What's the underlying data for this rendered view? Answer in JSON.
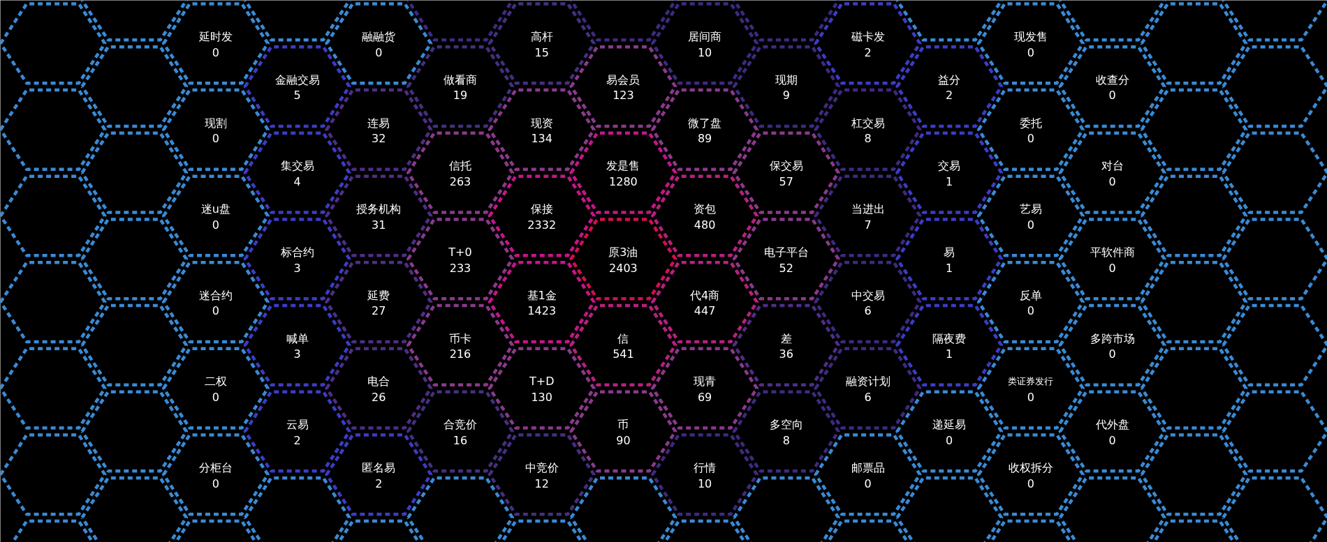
{
  "chart_data": {
    "type": "other",
    "data_labels": true,
    "categories": [
      null,
      null,
      null,
      null,
      null,
      null,
      null,
      null,
      null,
      null,
      null,
      null,
      null,
      null,
      "延时发",
      "现割",
      "迷u盘",
      "迷合约",
      "二权",
      "分柜台",
      null,
      null,
      "金融交易",
      "集交易",
      "标合约",
      "喊单",
      "云易",
      null,
      "融融货",
      "连易",
      "授务机构",
      "延费",
      "电合",
      "匿名易",
      null,
      null,
      "做看商",
      "信托",
      "T+0",
      "币卡",
      "合竞价",
      null,
      "高杆",
      "现资",
      "保接",
      "基1金",
      "T+D",
      "中竞价",
      null,
      null,
      "易会员",
      "发是售",
      "原3油",
      "信",
      "币",
      null,
      "居间商",
      "微了盘",
      "资包",
      "代4商",
      "现青",
      "行情",
      null,
      null,
      "现期",
      "保交易",
      "电子平台",
      "差",
      "多空向",
      null,
      "磁卡发",
      "杠交易",
      "当进出",
      "中交易",
      "融资计划",
      "邮票品",
      null,
      null,
      "益分",
      "交易",
      "易",
      "隔夜费",
      "递延易",
      null,
      "现发售",
      "委托",
      "艺易",
      "反单",
      "类证券发行",
      "收权拆分",
      null,
      null,
      "收查分",
      "对台",
      "平软件商",
      "多跨市场",
      "代外盘",
      null,
      null,
      null,
      null,
      null,
      null,
      null,
      null,
      null,
      null,
      null,
      null,
      null,
      null,
      null
    ],
    "values": [
      null,
      null,
      null,
      null,
      null,
      null,
      null,
      null,
      null,
      null,
      null,
      null,
      null,
      null,
      0,
      0,
      0,
      0,
      0,
      0,
      null,
      null,
      5,
      4,
      3,
      3,
      2,
      null,
      0,
      32,
      31,
      27,
      26,
      2,
      null,
      null,
      19,
      263,
      233,
      216,
      16,
      null,
      15,
      134,
      2332,
      1423,
      130,
      12,
      null,
      null,
      123,
      1280,
      2403,
      541,
      90,
      null,
      10,
      89,
      480,
      447,
      69,
      10,
      null,
      null,
      9,
      57,
      52,
      36,
      8,
      null,
      2,
      8,
      7,
      6,
      6,
      0,
      null,
      null,
      2,
      1,
      1,
      1,
      0,
      null,
      0,
      0,
      0,
      0,
      0,
      0,
      null,
      null,
      0,
      0,
      0,
      0,
      0,
      null,
      null,
      null,
      null,
      null,
      null,
      null,
      null,
      null,
      null,
      null,
      null,
      null,
      null,
      null
    ],
    "colors": [
      "#3a8ad4",
      "#3a8ad4",
      "#3a8ad4",
      "#3a8ad4",
      "#3a8ad4",
      "#3a8ad4",
      "#3a8ad4",
      "#3a8ad4",
      "#3a8ad4",
      "#3a8ad4",
      "#3a8ad4",
      "#3a8ad4",
      "#3a8ad4",
      "#3a8ad4",
      "#3a8ad4",
      "#3a8ad4",
      "#3a8ad4",
      "#3a8ad4",
      "#3a8ad4",
      "#3a8ad4",
      "#3a8ad4",
      "#3a8ad4",
      "#3c3cc6",
      "#3c3cc6",
      "#3c3cc6",
      "#3c3cc6",
      "#3c3cc6",
      "#3a8ad4",
      "#3a8ad4",
      "#4e2e86",
      "#4e2e86",
      "#4e2e86",
      "#4e2e86",
      "#3c3cc6",
      "#3a8ad4",
      "#3e2a80",
      "#44307e",
      "#8a3a8a",
      "#8a3a8a",
      "#8a3a8a",
      "#44307e",
      "#3a8ad4",
      "#44307e",
      "#8a3a8a",
      "#c8148a",
      "#c8148a",
      "#8a3a8a",
      "#44307e",
      "#3a8ad4",
      "#3e2a80",
      "#8a3a8a",
      "#c8148a",
      "#d01050",
      "#b8207e",
      "#8a3a8a",
      "#3a8ad4",
      "#3e2a80",
      "#8a3a8a",
      "#b8207e",
      "#b8207e",
      "#8a3a8a",
      "#3e2a80",
      "#3a8ad4",
      "#3e2a80",
      "#3e2a80",
      "#8a3a8a",
      "#8a3a8a",
      "#4e2e86",
      "#3e2a80",
      "#3a8ad4",
      "#3c3cc6",
      "#3e2a80",
      "#3e2a80",
      "#3e2a80",
      "#3e2a80",
      "#3a8ad4",
      "#3a8ad4",
      "#3a8ad4",
      "#3c3cc6",
      "#3c3cc6",
      "#3c3cc6",
      "#3c3cc6",
      "#3a8ad4",
      "#3a8ad4",
      "#3a8ad4",
      "#3a8ad4",
      "#3a8ad4",
      "#3a8ad4",
      "#3a8ad4",
      "#3a8ad4",
      "#3a8ad4",
      "#3a8ad4",
      "#3a8ad4",
      "#3a8ad4",
      "#3a8ad4",
      "#3a8ad4",
      "#3a8ad4",
      "#3a8ad4",
      "#3a8ad4",
      "#3a8ad4",
      "#3a8ad4",
      "#3a8ad4",
      "#3a8ad4",
      "#3a8ad4",
      "#3a8ad4",
      "#3a8ad4",
      "#3a8ad4",
      "#3a8ad4",
      "#3a8ad4",
      "#3a8ad4",
      "#3a8ad4",
      "#3a8ad4"
    ]
  }
}
